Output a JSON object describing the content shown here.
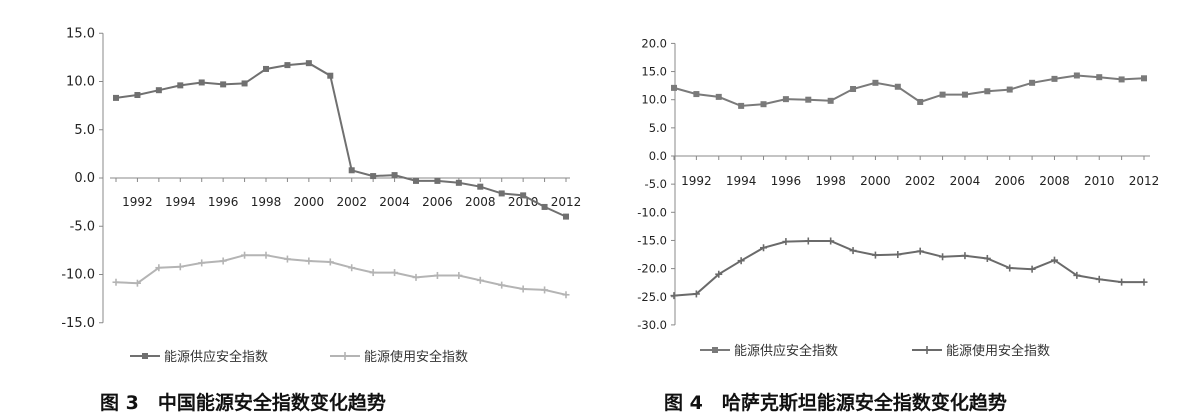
{
  "chart_data": [
    {
      "type": "line",
      "title": "",
      "caption": "图 3　中国能源安全指数变化趋势",
      "xlabel": "",
      "ylabel": "",
      "x": [
        1991,
        1992,
        1993,
        1994,
        1995,
        1996,
        1997,
        1998,
        1999,
        2000,
        2001,
        2002,
        2003,
        2004,
        2005,
        2006,
        2007,
        2008,
        2009,
        2010,
        2011,
        2012
      ],
      "x_tick_labels": [
        "1992",
        "1994",
        "1996",
        "1998",
        "2000",
        "2002",
        "2004",
        "2006",
        "2008",
        "2010",
        "2012"
      ],
      "y_tick_labels": [
        "15.0",
        "10.0",
        "5.0",
        "0.0",
        "-5.0",
        "-10.0",
        "-15.0"
      ],
      "ylim": [
        -15,
        15
      ],
      "grid": false,
      "legend_position": "bottom",
      "series": [
        {
          "name": "能源供应安全指数",
          "color": "#707070",
          "values": [
            8.3,
            8.6,
            9.1,
            9.6,
            9.9,
            9.7,
            9.8,
            11.3,
            11.7,
            11.9,
            10.6,
            0.8,
            0.2,
            0.3,
            -0.3,
            -0.3,
            -0.5,
            -0.9,
            -1.6,
            -1.8,
            -3.0,
            -4.0
          ]
        },
        {
          "name": "能源使用安全指数",
          "color": "#b4b4b4",
          "values": [
            -10.8,
            -10.9,
            -9.3,
            -9.2,
            -8.8,
            -8.6,
            -8.0,
            -8.0,
            -8.4,
            -8.6,
            -8.7,
            -9.3,
            -9.8,
            -9.8,
            -10.3,
            -10.1,
            -10.1,
            -10.6,
            -11.1,
            -11.5,
            -11.6,
            -12.1
          ]
        }
      ]
    },
    {
      "type": "line",
      "title": "",
      "caption": "图 4　哈萨克斯坦能源安全指数变化趋势",
      "xlabel": "",
      "ylabel": "",
      "x": [
        1991,
        1992,
        1993,
        1994,
        1995,
        1996,
        1997,
        1998,
        1999,
        2000,
        2001,
        2002,
        2003,
        2004,
        2005,
        2006,
        2007,
        2008,
        2009,
        2010,
        2011,
        2012
      ],
      "x_tick_labels": [
        "1992",
        "1994",
        "1996",
        "1998",
        "2000",
        "2002",
        "2004",
        "2006",
        "2008",
        "2010",
        "2012"
      ],
      "y_tick_labels": [
        "20.0",
        "15.0",
        "10.0",
        "5.0",
        "0.0",
        "-5.0",
        "-10.0",
        "-15.0",
        "-20.0",
        "-25.0",
        "-30.0"
      ],
      "ylim": [
        -30,
        20
      ],
      "grid": false,
      "legend_position": "bottom",
      "series": [
        {
          "name": "能源供应安全指数",
          "color": "#7a7a7a",
          "values": [
            12.1,
            11.0,
            10.5,
            8.9,
            9.2,
            10.1,
            10.0,
            9.8,
            11.9,
            13.0,
            12.3,
            9.6,
            10.9,
            10.9,
            11.5,
            11.8,
            13.0,
            13.7,
            14.3,
            14.0,
            13.6,
            13.8
          ]
        },
        {
          "name": "能源使用安全指数",
          "color": "#6a6a6a",
          "values": [
            -24.8,
            -24.5,
            -21.0,
            -18.6,
            -16.3,
            -15.2,
            -15.1,
            -15.1,
            -16.8,
            -17.6,
            -17.5,
            -16.9,
            -17.9,
            -17.7,
            -18.2,
            -19.9,
            -20.1,
            -18.5,
            -21.2,
            -21.9,
            -22.4,
            -22.4
          ]
        }
      ]
    }
  ]
}
